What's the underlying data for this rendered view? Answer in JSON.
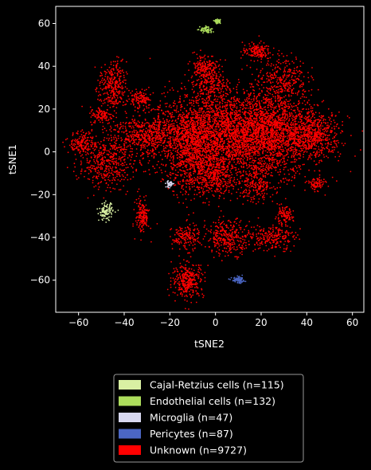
{
  "chart_data": {
    "type": "scatter",
    "xlabel": "tSNE2",
    "ylabel": "tSNE1",
    "xlim": [
      -70,
      65
    ],
    "ylim": [
      -75,
      68
    ],
    "xticks": [
      -60,
      -40,
      -20,
      0,
      20,
      40,
      60
    ],
    "yticks": [
      -60,
      -40,
      -20,
      0,
      20,
      40,
      60
    ],
    "grid": false,
    "legend_position": "bottom-center",
    "series": [
      {
        "name": "Cajal-Retzius cells (n=115)",
        "color": "#d9f0a3",
        "count": 115,
        "clusters": [
          {
            "x": -48,
            "y": -28,
            "sx": 1.5,
            "sy": 2.0
          }
        ]
      },
      {
        "name": "Endothelial cells (n=132)",
        "color": "#addd5c",
        "count": 132,
        "clusters": [
          {
            "x": -4,
            "y": 57,
            "sx": 1.4,
            "sy": 0.9
          },
          {
            "x": 1,
            "y": 61,
            "sx": 0.6,
            "sy": 0.4
          }
        ]
      },
      {
        "name": "Microglia (n=47)",
        "color": "#d8d8f0",
        "count": 47,
        "clusters": [
          {
            "x": -20,
            "y": -15,
            "sx": 0.8,
            "sy": 0.8
          }
        ]
      },
      {
        "name": "Pericytes (n=87)",
        "color": "#4b66c4",
        "count": 87,
        "clusters": [
          {
            "x": 10,
            "y": -60,
            "sx": 1.4,
            "sy": 0.7
          }
        ]
      },
      {
        "name": "Unknown (n=9727)",
        "color": "#ff0000",
        "count": 9727,
        "clusters": [
          {
            "x": 5,
            "y": 8,
            "sx": 17,
            "sy": 10,
            "w": 30
          },
          {
            "x": 25,
            "y": 10,
            "sx": 9,
            "sy": 10,
            "w": 10
          },
          {
            "x": 43,
            "y": 8,
            "sx": 6,
            "sy": 5,
            "w": 5
          },
          {
            "x": -10,
            "y": 0,
            "sx": 5,
            "sy": 10,
            "w": 6
          },
          {
            "x": -30,
            "y": 8,
            "sx": 8,
            "sy": 5,
            "w": 5
          },
          {
            "x": -48,
            "y": -5,
            "sx": 6,
            "sy": 6,
            "w": 4
          },
          {
            "x": -58,
            "y": 4,
            "sx": 3,
            "sy": 2.5,
            "w": 1.5
          },
          {
            "x": -45,
            "y": 30,
            "sx": 3,
            "sy": 6,
            "w": 3
          },
          {
            "x": -33,
            "y": 25,
            "sx": 2,
            "sy": 2,
            "w": 1
          },
          {
            "x": -50,
            "y": 17,
            "sx": 2.5,
            "sy": 2,
            "w": 1
          },
          {
            "x": -5,
            "y": 40,
            "sx": 3,
            "sy": 3,
            "w": 1.5
          },
          {
            "x": -2,
            "y": 32,
            "sx": 4,
            "sy": 4,
            "w": 2
          },
          {
            "x": 18,
            "y": 47,
            "sx": 3,
            "sy": 2,
            "w": 1.5
          },
          {
            "x": 30,
            "y": 35,
            "sx": 5,
            "sy": 5,
            "w": 2.5
          },
          {
            "x": 0,
            "y": -12,
            "sx": 4,
            "sy": 5,
            "w": 3
          },
          {
            "x": 18,
            "y": -15,
            "sx": 4,
            "sy": 4,
            "w": 2
          },
          {
            "x": 44,
            "y": -15,
            "sx": 2,
            "sy": 1.5,
            "w": 0.8
          },
          {
            "x": -32,
            "y": -30,
            "sx": 1.5,
            "sy": 4,
            "w": 1.5
          },
          {
            "x": -13,
            "y": -40,
            "sx": 3,
            "sy": 3,
            "w": 1.5
          },
          {
            "x": 6,
            "y": -40,
            "sx": 5,
            "sy": 4,
            "w": 3
          },
          {
            "x": 25,
            "y": -40,
            "sx": 5,
            "sy": 3,
            "w": 2
          },
          {
            "x": 30,
            "y": -30,
            "sx": 2,
            "sy": 2,
            "w": 1
          },
          {
            "x": -12,
            "y": -60,
            "sx": 3.5,
            "sy": 4,
            "w": 3
          }
        ]
      }
    ]
  }
}
